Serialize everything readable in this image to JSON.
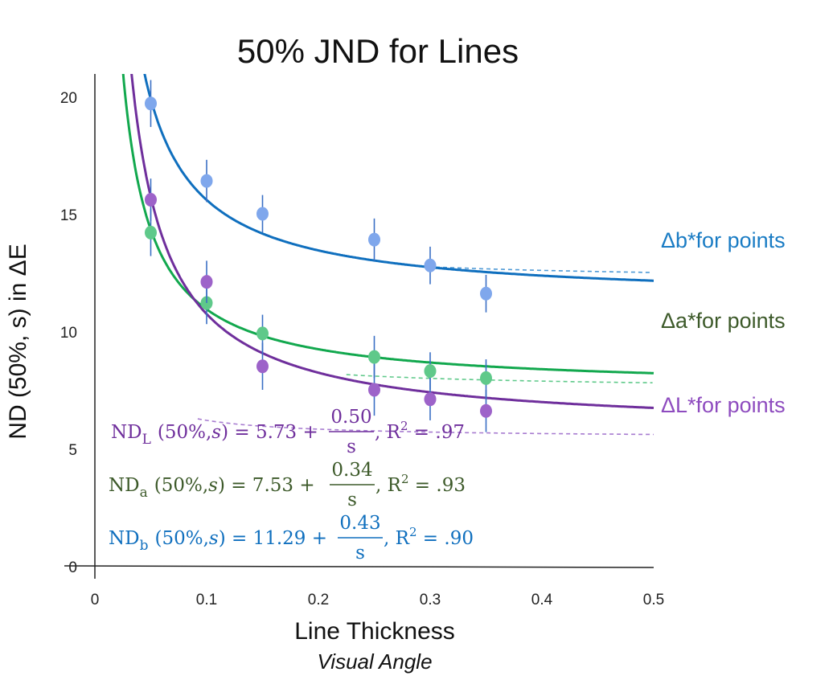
{
  "chart_data": {
    "type": "scatter",
    "title": "50% JND for Lines",
    "xlabel": "Line Thickness",
    "xlabel_sub": "Visual Angle",
    "ylabel": "ND (50%, s) in ΔE",
    "xlim": [
      0,
      0.5
    ],
    "ylim": [
      0,
      20
    ],
    "x_ticks": [
      {
        "value": 0,
        "label": "0"
      },
      {
        "value": 0.1,
        "label": "0.1"
      },
      {
        "value": 0.2,
        "label": "0.2"
      },
      {
        "value": 0.3,
        "label": "0.3"
      },
      {
        "value": 0.4,
        "label": "0.4"
      },
      {
        "value": 0.5,
        "label": "0.5"
      }
    ],
    "y_ticks": [
      {
        "value": 0,
        "label": "0"
      },
      {
        "value": 5,
        "label": "5"
      },
      {
        "value": 10,
        "label": "10"
      },
      {
        "value": 15,
        "label": "15"
      },
      {
        "value": 20,
        "label": "20"
      }
    ],
    "grid": false,
    "series": [
      {
        "key": "b",
        "point_color": "#7fa7ec",
        "fit_color": "#0f6fbe",
        "x": [
          0.05,
          0.1,
          0.15,
          0.25,
          0.3,
          0.35
        ],
        "y": [
          19.7,
          16.4,
          15.0,
          13.9,
          12.8,
          11.6
        ],
        "error": [
          1.0,
          0.9,
          0.8,
          0.9,
          0.8,
          0.8
        ],
        "fit": {
          "intercept": 11.29,
          "slope": 0.43
        }
      },
      {
        "key": "a",
        "point_color": "#5fc98a",
        "fit_color": "#12a84e",
        "x": [
          0.05,
          0.1,
          0.15,
          0.25,
          0.3,
          0.35
        ],
        "y": [
          14.2,
          11.2,
          9.9,
          8.9,
          8.3,
          8.0
        ],
        "error": [
          1.0,
          0.9,
          0.8,
          0.9,
          0.8,
          0.8
        ],
        "fit": {
          "intercept": 7.53,
          "slope": 0.34
        }
      },
      {
        "key": "L",
        "point_color": "#9d63c9",
        "fit_color": "#6f2f9c",
        "x": [
          0.05,
          0.1,
          0.15,
          0.25,
          0.3,
          0.35
        ],
        "y": [
          15.6,
          12.1,
          8.5,
          7.5,
          7.1,
          6.6
        ],
        "error": [
          0.9,
          0.9,
          1.0,
          1.1,
          0.9,
          0.9
        ],
        "fit": {
          "intercept": 5.73,
          "slope": 0.5
        }
      }
    ],
    "reference_curves": [
      {
        "label": "Δb*for points",
        "label_color": "#1a7cc4",
        "color": "#4f9ad6",
        "intercept": 12.5,
        "slope": 3.6,
        "x_start": 0.305
      },
      {
        "label": "Δa*for points",
        "label_color": "#3d5a2a",
        "color": "#5fc98a",
        "intercept": 7.8,
        "slope": 2.85,
        "x_start": 0.225
      },
      {
        "label": "ΔL*for points",
        "label_color": "#8e4cbf",
        "color": "#a77bd0",
        "intercept": 5.6,
        "slope": 1.5,
        "x_start": 0.092
      }
    ],
    "equations": [
      {
        "color": "#6f2f9c",
        "lhs": "ND",
        "sub": "L",
        "args": "(50%,",
        "var": "s",
        "rest": ") = 5.73 +",
        "num": "0.50",
        "den": "s",
        "r2": ", R",
        "sup": "2",
        "r2val": " = .97"
      },
      {
        "color": "#3d5a2a",
        "lhs": "ND",
        "sub": "a",
        "args": "(50%,",
        "var": "s",
        "rest": ") = 7.53 +",
        "num": "0.34",
        "den": "s",
        "r2": ", R",
        "sup": "2",
        "r2val": " = .93"
      },
      {
        "color": "#0f6fbe",
        "lhs": "ND",
        "sub": "b",
        "args": "(50%,",
        "var": "s",
        "rest": ") = 11.29 +",
        "num": "0.43",
        "den": "s",
        "r2": ", R",
        "sup": "2",
        "r2val": " = .90"
      }
    ]
  }
}
